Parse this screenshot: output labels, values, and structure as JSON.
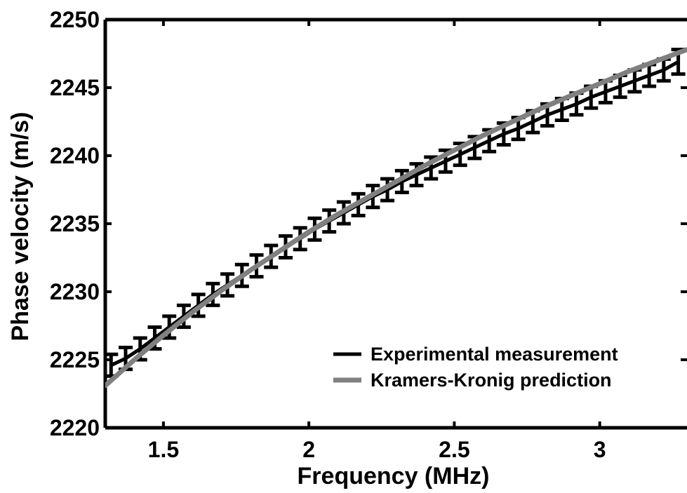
{
  "chart_data": {
    "type": "line",
    "title": "",
    "xlabel": "Frequency (MHz)",
    "ylabel": "Phase velocity (m/s)",
    "xlim": [
      1.3,
      3.3
    ],
    "ylim": [
      2220,
      2250
    ],
    "xticks": [
      1.5,
      2,
      2.5,
      3
    ],
    "xtick_labels": [
      "1.5",
      "2",
      "2.5",
      "3"
    ],
    "yticks": [
      2220,
      2225,
      2230,
      2235,
      2240,
      2245,
      2250
    ],
    "ytick_labels": [
      "2220",
      "2225",
      "2230",
      "2235",
      "2240",
      "2245",
      "2250"
    ],
    "grid": false,
    "legend_position": "bottom-right",
    "series": [
      {
        "name": "Experimental measurement",
        "color": "#000000",
        "style": "errorbar",
        "x": [
          1.32,
          1.37,
          1.42,
          1.47,
          1.52,
          1.57,
          1.62,
          1.67,
          1.72,
          1.77,
          1.82,
          1.87,
          1.92,
          1.97,
          2.02,
          2.07,
          2.12,
          2.17,
          2.22,
          2.27,
          2.32,
          2.37,
          2.42,
          2.47,
          2.52,
          2.57,
          2.62,
          2.67,
          2.72,
          2.77,
          2.82,
          2.87,
          2.92,
          2.97,
          3.02,
          3.07,
          3.12,
          3.17,
          3.22,
          3.27
        ],
        "y": [
          2224.6,
          2225.1,
          2225.8,
          2226.6,
          2227.4,
          2228.2,
          2229.0,
          2229.8,
          2230.5,
          2231.2,
          2231.9,
          2232.6,
          2233.3,
          2233.9,
          2234.6,
          2235.2,
          2235.8,
          2236.4,
          2237.0,
          2237.5,
          2238.1,
          2238.6,
          2239.1,
          2239.6,
          2240.1,
          2240.6,
          2241.1,
          2241.6,
          2242.0,
          2242.5,
          2243.0,
          2243.4,
          2243.8,
          2244.3,
          2244.7,
          2245.1,
          2245.5,
          2245.9,
          2246.3,
          2246.9
        ],
        "err": [
          0.8,
          0.8,
          0.8,
          0.8,
          0.8,
          0.8,
          0.8,
          0.8,
          0.8,
          0.8,
          0.8,
          0.8,
          0.8,
          0.8,
          0.8,
          0.8,
          0.8,
          0.8,
          0.8,
          0.8,
          0.8,
          0.8,
          0.8,
          0.8,
          0.8,
          0.8,
          0.8,
          0.8,
          0.8,
          0.8,
          0.8,
          0.8,
          0.8,
          0.8,
          0.8,
          0.8,
          0.8,
          0.8,
          0.8,
          0.9
        ]
      },
      {
        "name": "Kramers-Kronig prediction",
        "color": "#808080",
        "style": "line",
        "x": [
          1.3,
          1.4,
          1.5,
          1.6,
          1.7,
          1.8,
          1.9,
          2.0,
          2.1,
          2.2,
          2.3,
          2.4,
          2.5,
          2.6,
          2.7,
          2.8,
          2.9,
          3.0,
          3.1,
          3.2,
          3.3
        ],
        "y": [
          2223.1,
          2225.0,
          2226.8,
          2228.5,
          2230.1,
          2231.6,
          2233.0,
          2234.4,
          2235.7,
          2236.9,
          2238.1,
          2239.3,
          2240.4,
          2241.5,
          2242.5,
          2243.5,
          2244.4,
          2245.3,
          2246.2,
          2247.0,
          2247.8
        ]
      }
    ]
  }
}
